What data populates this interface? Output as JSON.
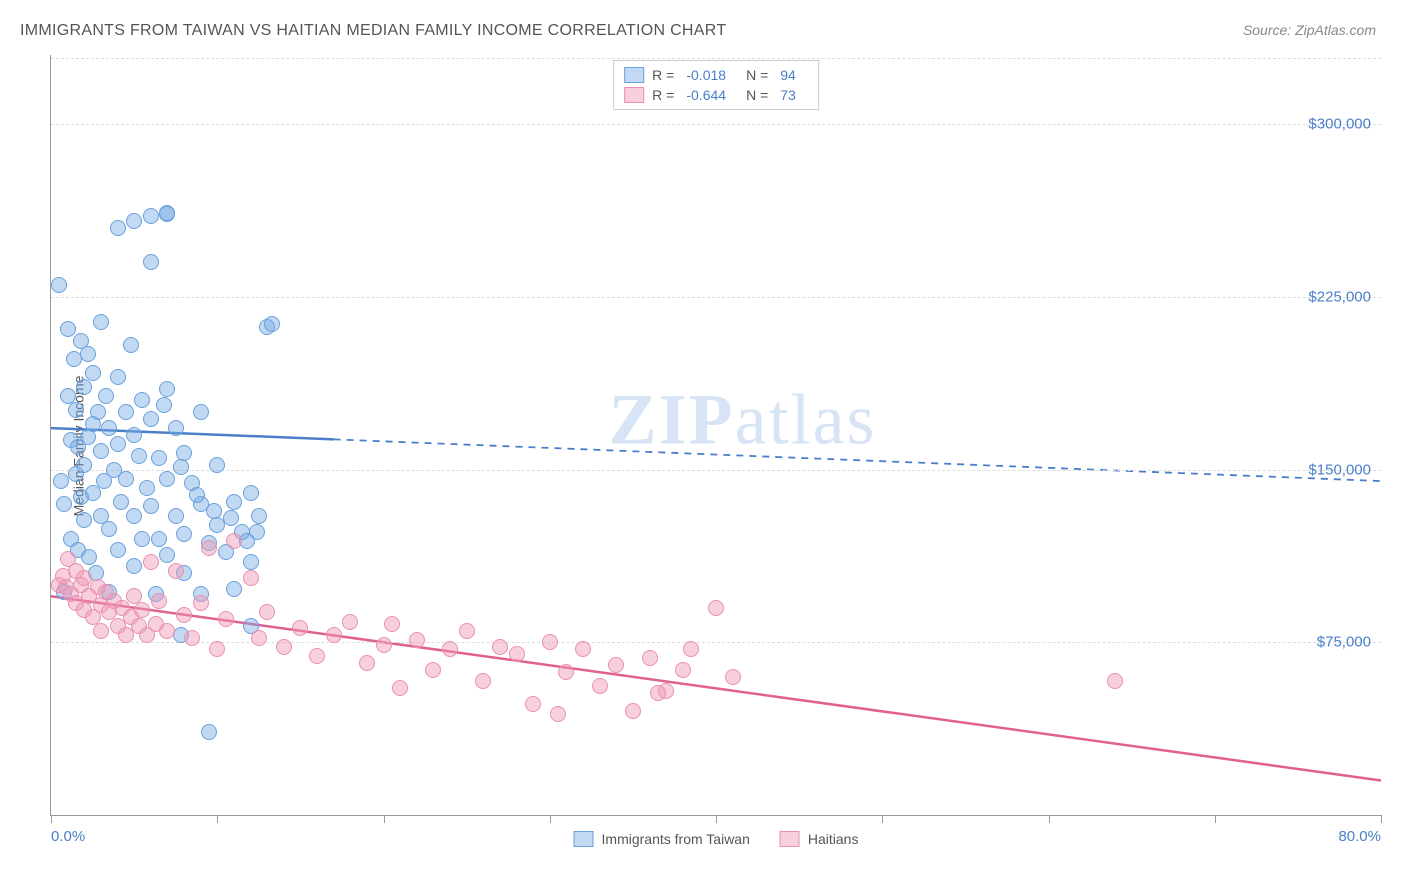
{
  "title": "IMMIGRANTS FROM TAIWAN VS HAITIAN MEDIAN FAMILY INCOME CORRELATION CHART",
  "source": "Source: ZipAtlas.com",
  "ylabel": "Median Family Income",
  "watermark_a": "ZIP",
  "watermark_b": "atlas",
  "chart": {
    "type": "scatter",
    "xlim": [
      0,
      80
    ],
    "ylim": [
      0,
      330000
    ],
    "xmin_label": "0.0%",
    "xmax_label": "80.0%",
    "yticks": [
      {
        "v": 75000,
        "label": "$75,000"
      },
      {
        "v": 150000,
        "label": "$150,000"
      },
      {
        "v": 225000,
        "label": "$225,000"
      },
      {
        "v": 300000,
        "label": "$300,000"
      }
    ],
    "xticks_minor": [
      0,
      10,
      20,
      30,
      40,
      50,
      60,
      70,
      80
    ],
    "grid_color": "#dddddd",
    "axis_color": "#999999",
    "background_color": "#ffffff",
    "tick_label_color": "#4a7ec9",
    "point_radius": 8,
    "series": [
      {
        "name": "Immigrants from Taiwan",
        "fill": "rgba(120,170,230,0.45)",
        "stroke": "#6aa0db",
        "line_color": "#4a7ec9",
        "r": "-0.018",
        "n": "94",
        "trend": {
          "x1": 0,
          "y1": 168000,
          "x2": 80,
          "y2": 145000,
          "solid_until_x": 17
        },
        "points": [
          [
            0.5,
            230000
          ],
          [
            0.6,
            145000
          ],
          [
            0.8,
            97000
          ],
          [
            0.8,
            135000
          ],
          [
            1.0,
            211000
          ],
          [
            1.0,
            182000
          ],
          [
            1.2,
            163000
          ],
          [
            1.2,
            120000
          ],
          [
            1.4,
            198000
          ],
          [
            1.5,
            148000
          ],
          [
            1.5,
            176000
          ],
          [
            1.6,
            160000
          ],
          [
            1.6,
            115000
          ],
          [
            1.8,
            206000
          ],
          [
            1.8,
            138000
          ],
          [
            2.0,
            186000
          ],
          [
            2.0,
            152000
          ],
          [
            2.0,
            128000
          ],
          [
            2.2,
            200000
          ],
          [
            2.2,
            164000
          ],
          [
            2.3,
            112000
          ],
          [
            2.5,
            192000
          ],
          [
            2.5,
            170000
          ],
          [
            2.5,
            140000
          ],
          [
            2.7,
            105000
          ],
          [
            2.8,
            175000
          ],
          [
            3.0,
            214000
          ],
          [
            3.0,
            158000
          ],
          [
            3.0,
            130000
          ],
          [
            3.2,
            145000
          ],
          [
            3.3,
            182000
          ],
          [
            3.5,
            124000
          ],
          [
            3.5,
            168000
          ],
          [
            3.5,
            97000
          ],
          [
            3.8,
            150000
          ],
          [
            4.0,
            255000
          ],
          [
            4.0,
            190000
          ],
          [
            4.0,
            161000
          ],
          [
            4.0,
            115000
          ],
          [
            4.2,
            136000
          ],
          [
            4.5,
            175000
          ],
          [
            4.5,
            146000
          ],
          [
            4.8,
            204000
          ],
          [
            5.0,
            258000
          ],
          [
            5.0,
            165000
          ],
          [
            5.0,
            130000
          ],
          [
            5.0,
            108000
          ],
          [
            5.3,
            156000
          ],
          [
            5.5,
            120000
          ],
          [
            5.5,
            180000
          ],
          [
            5.8,
            142000
          ],
          [
            6.0,
            260000
          ],
          [
            6.0,
            240000
          ],
          [
            6.0,
            172000
          ],
          [
            6.0,
            134000
          ],
          [
            6.3,
            96000
          ],
          [
            6.5,
            155000
          ],
          [
            6.5,
            120000
          ],
          [
            7.0,
            261000
          ],
          [
            7.0,
            261500
          ],
          [
            7.0,
            185000
          ],
          [
            7.0,
            146000
          ],
          [
            7.0,
            113000
          ],
          [
            7.5,
            168000
          ],
          [
            7.5,
            130000
          ],
          [
            7.8,
            78000
          ],
          [
            8.0,
            157000
          ],
          [
            8.0,
            122000
          ],
          [
            8.0,
            105000
          ],
          [
            8.5,
            144000
          ],
          [
            9.0,
            175000
          ],
          [
            9.0,
            135000
          ],
          [
            9.0,
            96000
          ],
          [
            9.5,
            118000
          ],
          [
            9.5,
            36000
          ],
          [
            10.0,
            126000
          ],
          [
            10.0,
            152000
          ],
          [
            10.5,
            114000
          ],
          [
            11.0,
            136000
          ],
          [
            11.0,
            98000
          ],
          [
            11.5,
            123000
          ],
          [
            12.0,
            110000
          ],
          [
            12.0,
            140000
          ],
          [
            12.5,
            130000
          ],
          [
            12.0,
            82000
          ],
          [
            13.0,
            212000
          ],
          [
            13.3,
            213000
          ],
          [
            12.4,
            123000
          ],
          [
            11.8,
            119000
          ],
          [
            10.8,
            129000
          ],
          [
            9.8,
            132000
          ],
          [
            8.8,
            139000
          ],
          [
            7.8,
            151000
          ],
          [
            6.8,
            178000
          ]
        ]
      },
      {
        "name": "Haitians",
        "fill": "rgba(240,150,180,0.45)",
        "stroke": "#e890b0",
        "line_color": "#e06090",
        "r": "-0.644",
        "n": "73",
        "trend": {
          "x1": 0,
          "y1": 95000,
          "x2": 80,
          "y2": 15000,
          "solid_until_x": 80
        },
        "points": [
          [
            0.5,
            100000
          ],
          [
            0.7,
            104000
          ],
          [
            0.9,
            99000
          ],
          [
            1.0,
            111000
          ],
          [
            1.2,
            96000
          ],
          [
            1.5,
            106000
          ],
          [
            1.5,
            92000
          ],
          [
            1.8,
            100000
          ],
          [
            2.0,
            89000
          ],
          [
            2.0,
            103000
          ],
          [
            2.3,
            95000
          ],
          [
            2.5,
            86000
          ],
          [
            2.8,
            99000
          ],
          [
            3.0,
            91000
          ],
          [
            3.0,
            80000
          ],
          [
            3.3,
            97000
          ],
          [
            3.5,
            88000
          ],
          [
            3.8,
            93000
          ],
          [
            4.0,
            82000
          ],
          [
            4.3,
            90000
          ],
          [
            4.5,
            78000
          ],
          [
            4.8,
            86000
          ],
          [
            5.0,
            95000
          ],
          [
            5.3,
            82000
          ],
          [
            5.5,
            89000
          ],
          [
            5.8,
            78000
          ],
          [
            6.0,
            110000
          ],
          [
            6.3,
            83000
          ],
          [
            6.5,
            93000
          ],
          [
            7.0,
            80000
          ],
          [
            7.5,
            106000
          ],
          [
            8.0,
            87000
          ],
          [
            8.5,
            77000
          ],
          [
            9.0,
            92000
          ],
          [
            9.5,
            116000
          ],
          [
            10.0,
            72000
          ],
          [
            10.5,
            85000
          ],
          [
            11.0,
            119000
          ],
          [
            12.0,
            103000
          ],
          [
            12.5,
            77000
          ],
          [
            13.0,
            88000
          ],
          [
            14.0,
            73000
          ],
          [
            15.0,
            81000
          ],
          [
            16.0,
            69000
          ],
          [
            17.0,
            78000
          ],
          [
            18.0,
            84000
          ],
          [
            19.0,
            66000
          ],
          [
            20.0,
            74000
          ],
          [
            21.0,
            55000
          ],
          [
            22.0,
            76000
          ],
          [
            23.0,
            63000
          ],
          [
            24.0,
            72000
          ],
          [
            25.0,
            80000
          ],
          [
            26.0,
            58000
          ],
          [
            27.0,
            73000
          ],
          [
            28.0,
            70000
          ],
          [
            29.0,
            48000
          ],
          [
            30.0,
            75000
          ],
          [
            31.0,
            62000
          ],
          [
            32.0,
            72000
          ],
          [
            33.0,
            56000
          ],
          [
            34.0,
            65000
          ],
          [
            35.0,
            45000
          ],
          [
            36.0,
            68000
          ],
          [
            37.0,
            54000
          ],
          [
            38.0,
            63000
          ],
          [
            40.0,
            90000
          ],
          [
            41.0,
            60000
          ],
          [
            38.5,
            72000
          ],
          [
            36.5,
            53000
          ],
          [
            30.5,
            44000
          ],
          [
            64.0,
            58000
          ],
          [
            20.5,
            83000
          ]
        ]
      }
    ]
  },
  "legend_bottom": [
    {
      "label": "Immigrants from Taiwan",
      "fill": "rgba(120,170,230,0.45)",
      "stroke": "#6aa0db"
    },
    {
      "label": "Haitians",
      "fill": "rgba(240,150,180,0.45)",
      "stroke": "#e890b0"
    }
  ]
}
